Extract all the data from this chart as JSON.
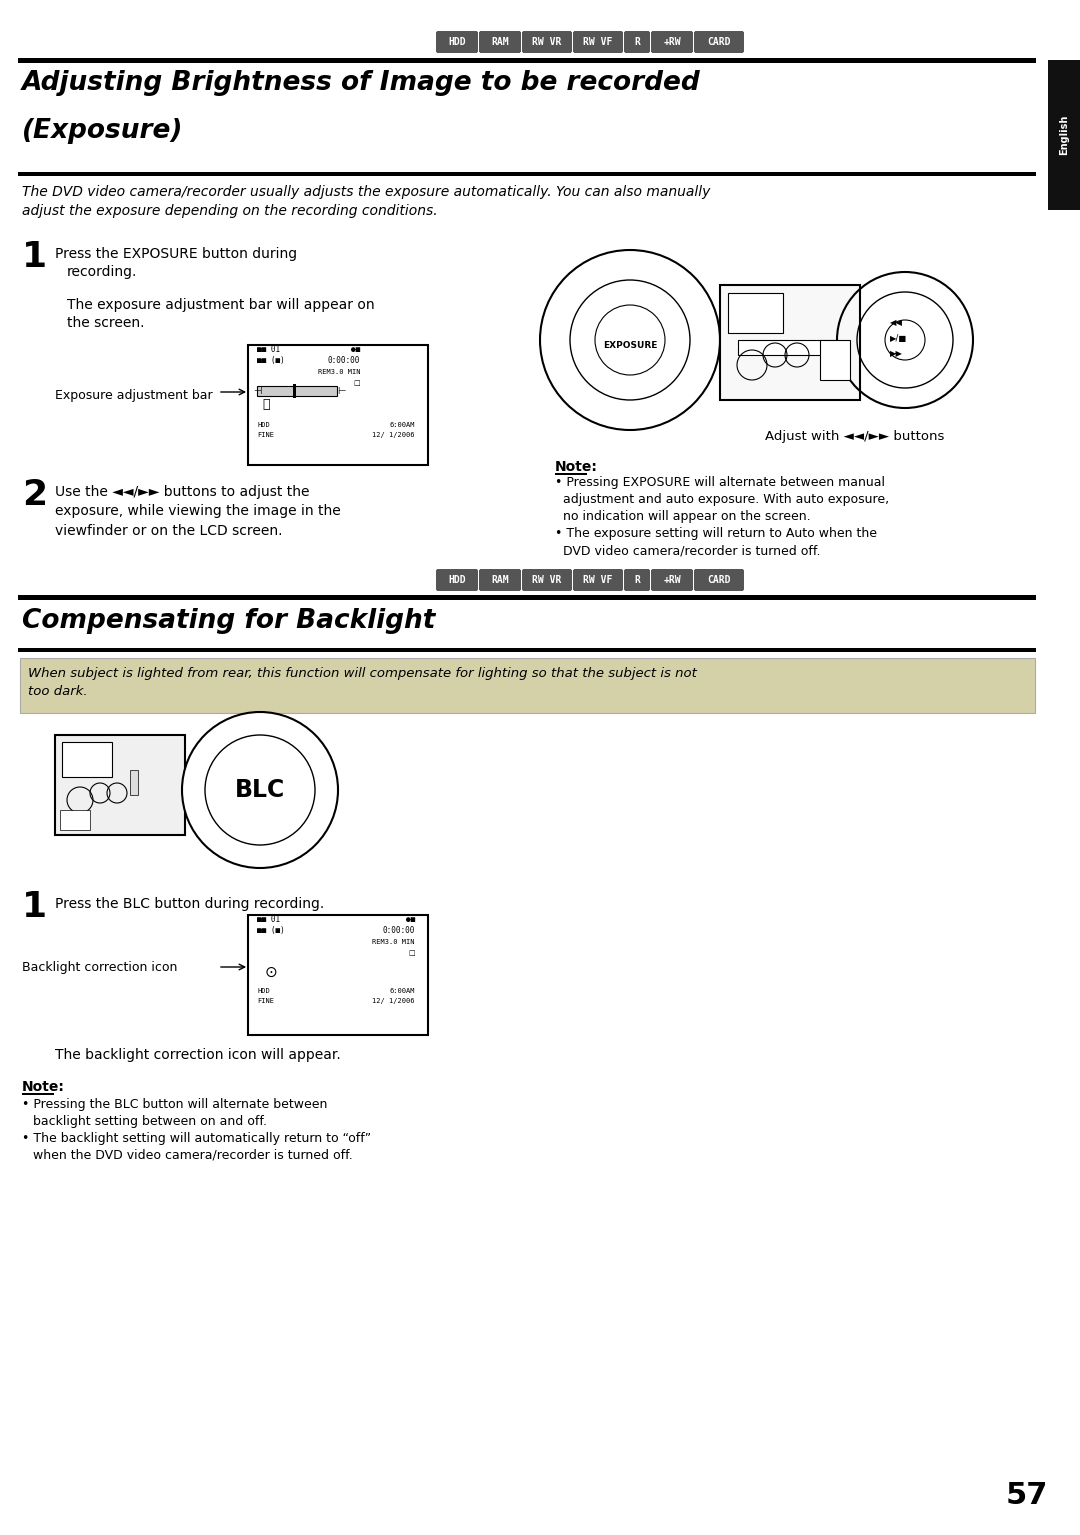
{
  "page_bg": "#ffffff",
  "page_number": "57",
  "tab_labels": [
    "HDD",
    "RAM",
    "RW VR",
    "RW VF",
    "R",
    "+RW",
    "CARD"
  ],
  "section1_title_line1": "Adjusting Brightness of Image to be recorded",
  "section1_title_line2": "(Exposure)",
  "section2_title": "Compensating for Backlight",
  "side_label": "English",
  "intro_text": "The DVD video camera/recorder usually adjusts the exposure automatically. You can also manually\nadjust the exposure depending on the recording conditions.",
  "step1_text_a": "Press the EXPOSURE button during",
  "step1_text_b": "recording.",
  "step1_text_c": "The exposure adjustment bar will appear on",
  "step1_text_d": "the screen.",
  "step1_label": "Exposure adjustment bar",
  "step1_caption": "Adjust with ◄◄/►► buttons",
  "step2_text": "Use the ◄◄/►► buttons to adjust the\nexposure, while viewing the image in the\nviewfinder or on the LCD screen.",
  "note_title": "Note:",
  "note_bullet1a": "Pressing EXPOSURE will alternate between manual",
  "note_bullet1b": "adjustment and auto exposure. With auto exposure,",
  "note_bullet1c": "no indication will appear on the screen.",
  "note_bullet2a": "The exposure setting will return to Auto when the",
  "note_bullet2b": "DVD video camera/recorder is turned off.",
  "highlight_text_line1": "When subject is lighted from rear, this function will compensate for lighting so that the subject is not",
  "highlight_text_line2": "too dark.",
  "highlight_bg": "#d4d0a8",
  "blc_step1_text": "Press the BLC button during recording.",
  "blc_step1_label": "Backlight correction icon",
  "blc_caption": "The backlight correction icon will appear.",
  "blc_note_title": "Note:",
  "blc_note_bullet1a": "Pressing the BLC button will alternate between",
  "blc_note_bullet1b": "backlight setting between on and off.",
  "blc_note_bullet2a": "The backlight setting will automatically return to “off”",
  "blc_note_bullet2b": "when the DVD video camera/recorder is turned off."
}
